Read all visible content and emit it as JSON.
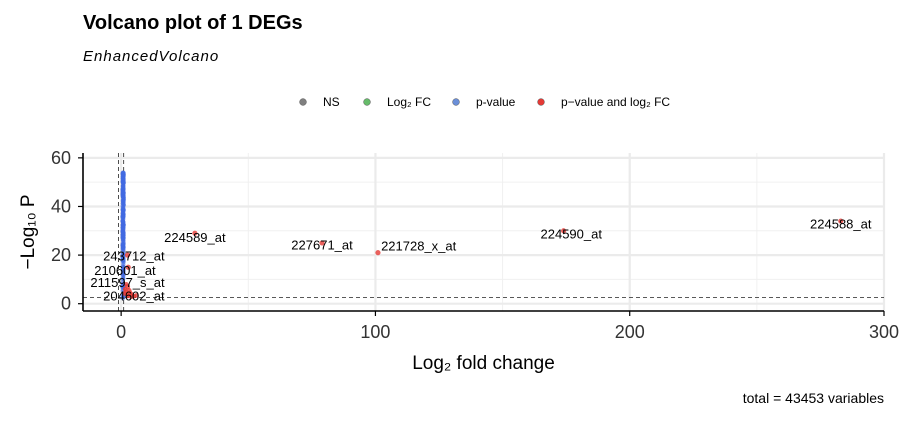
{
  "title": "Volcano plot of 1 DEGs",
  "subtitle": "EnhancedVolcano",
  "caption": "total = 43453 variables",
  "legend": [
    {
      "label": "NS",
      "color": "#7f7f7f"
    },
    {
      "label": "Log₂ FC",
      "color": "#66bb6a"
    },
    {
      "label": "p-value",
      "color": "#6b8fd8"
    },
    {
      "label": "p−value and log₂ FC",
      "color": "#e53935"
    }
  ],
  "chart_data": {
    "type": "scatter",
    "title": "Volcano plot of 1 DEGs",
    "xlabel": "Log₂ fold change",
    "ylabel": "−Log₁₀ P",
    "xlim": [
      -15,
      300
    ],
    "ylim": [
      -3,
      62
    ],
    "xticks": [
      0,
      100,
      200,
      300
    ],
    "yticks": [
      0,
      20,
      40,
      60
    ],
    "xtick_labels": [
      "0",
      "100",
      "200",
      "300"
    ],
    "ytick_labels": [
      "0",
      "20",
      "40",
      "60"
    ],
    "grid": true,
    "legend_position": "top",
    "cutoffs": {
      "log2fc": 1,
      "neglog10p": 2.5
    },
    "colors": {
      "pvalue": "#4169e1",
      "both": "#e53935"
    },
    "pvalue_points": {
      "x_range": [
        0.6,
        1.0
      ],
      "y_range": [
        1.5,
        54
      ]
    },
    "labeled_points": [
      {
        "label": "224588_at",
        "x": 283,
        "y": 34
      },
      {
        "label": "224590_at",
        "x": 174,
        "y": 30
      },
      {
        "label": "224589_at",
        "x": 29,
        "y": 29
      },
      {
        "label": "227671_at",
        "x": 79,
        "y": 25
      },
      {
        "label": "221728_x_at",
        "x": 101,
        "y": 21
      },
      {
        "label": "243712_at",
        "x": 2.5,
        "y": 20
      },
      {
        "label": "210601_at",
        "x": 2.8,
        "y": 15
      },
      {
        "label": "211597_s_at",
        "x": 2.5,
        "y": 7
      },
      {
        "label": "204602_at",
        "x": 4,
        "y": 3
      }
    ],
    "label_text": [
      {
        "label": "224588_at",
        "x": 283,
        "y": 32.5
      },
      {
        "label": "224590_at",
        "x": 177,
        "y": 28.5
      },
      {
        "label": "224589_at",
        "x": 29,
        "y": 27
      },
      {
        "label": "227671_at",
        "x": 79,
        "y": 24
      },
      {
        "label": "221728_x_at",
        "x": 117,
        "y": 23.5
      },
      {
        "label": "243712_at",
        "x": 5,
        "y": 19.5
      },
      {
        "label": "210601_at",
        "x": 1.5,
        "y": 13.5
      },
      {
        "label": "211597_s_at",
        "x": 2.5,
        "y": 8.5
      },
      {
        "label": "204602_at",
        "x": 5,
        "y": 3
      }
    ],
    "red_points_near_zero": [
      {
        "x": 1.8,
        "y": 5
      },
      {
        "x": 2.2,
        "y": 4
      },
      {
        "x": 3.0,
        "y": 3.5
      },
      {
        "x": 3.5,
        "y": 4.5
      },
      {
        "x": 2.6,
        "y": 3.2
      },
      {
        "x": 1.6,
        "y": 6
      },
      {
        "x": 4.2,
        "y": 3.8
      },
      {
        "x": 5.0,
        "y": 3.1
      },
      {
        "x": 2.0,
        "y": 8
      },
      {
        "x": 3.2,
        "y": 5.5
      },
      {
        "x": 1.4,
        "y": 4.2
      },
      {
        "x": 6.0,
        "y": 3.4
      }
    ]
  }
}
